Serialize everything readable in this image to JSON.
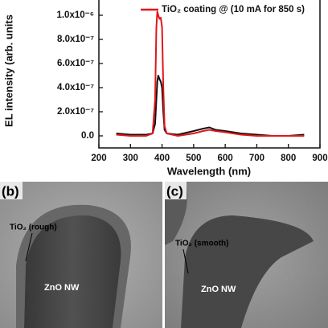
{
  "chart_data": {
    "type": "line",
    "ylabel": "EL intensity (arb. units",
    "xlabel": "Wavelength (nm)",
    "x": [
      255,
      300,
      350,
      370,
      378,
      382,
      385,
      388,
      392,
      396,
      400,
      404,
      408,
      415,
      450,
      500,
      530,
      550,
      570,
      600,
      650,
      700,
      750,
      800,
      850
    ],
    "series": [
      {
        "color": "#111111",
        "values": [
          2e-08,
          1e-08,
          1e-08,
          2e-08,
          1e-07,
          3e-07,
          4.5e-07,
          5e-07,
          4.7e-07,
          4.5e-07,
          4e-07,
          2e-07,
          5e-08,
          2e-08,
          1e-08,
          4e-08,
          6e-08,
          7e-08,
          5e-08,
          4e-08,
          2e-08,
          1e-08,
          0,
          0,
          1e-08
        ]
      },
      {
        "name": "TiO₂ coating @ (10 mA for 850 s)",
        "color": "#e0161b",
        "values": [
          1e-08,
          0,
          0,
          2e-08,
          3e-07,
          9e-07,
          1.03e-06,
          1e-06,
          9.7e-07,
          9.8e-07,
          9e-07,
          4e-07,
          8e-08,
          2e-08,
          0,
          2e-08,
          4e-08,
          5e-08,
          4e-08,
          3e-08,
          1e-08,
          0,
          0,
          0,
          0
        ]
      }
    ],
    "xlim": [
      200,
      900
    ],
    "xticks": [
      200,
      300,
      400,
      500,
      600,
      700,
      800,
      900
    ],
    "ylim": [
      -1e-07,
      1.1e-06
    ],
    "yticks": [
      {
        "value": 0,
        "label": "0.0"
      },
      {
        "value": 2e-07,
        "label": "2.0x10⁻⁷"
      },
      {
        "value": 4e-07,
        "label": "4.0x10⁻⁷"
      },
      {
        "value": 6e-07,
        "label": "6.0x10⁻⁷"
      },
      {
        "value": 8e-07,
        "label": "8.0x10⁻⁷"
      },
      {
        "value": 1e-06,
        "label": "1.0x10⁻⁶"
      }
    ]
  },
  "panels": [
    {
      "label": "(b)",
      "coating": "TiO₂ (rough)",
      "core": "ZnO NW"
    },
    {
      "label": "(c)",
      "coating": "TiO₂ (smooth)",
      "core": "ZnO NW"
    }
  ]
}
